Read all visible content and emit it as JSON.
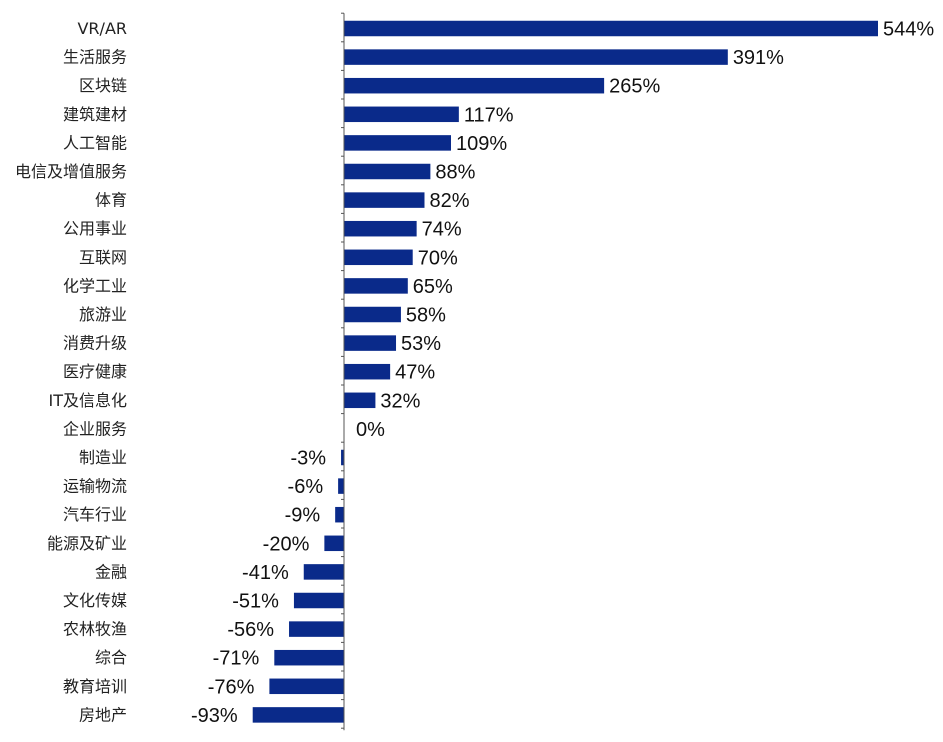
{
  "chart_data": {
    "type": "bar",
    "orientation": "horizontal",
    "categories": [
      "VR/AR",
      "生活服务",
      "区块链",
      "建筑建材",
      "人工智能",
      "电信及增值服务",
      "体育",
      "公用事业",
      "互联网",
      "化学工业",
      "旅游业",
      "消费升级",
      "医疗健康",
      "IT及信息化",
      "企业服务",
      "制造业",
      "运输物流",
      "汽车行业",
      "能源及矿业",
      "金融",
      "文化传媒",
      "农林牧渔",
      "综合",
      "教育培训",
      "房地产"
    ],
    "values": [
      544,
      391,
      265,
      117,
      109,
      88,
      82,
      74,
      70,
      65,
      58,
      53,
      47,
      32,
      0,
      -3,
      -6,
      -9,
      -20,
      -41,
      -51,
      -56,
      -71,
      -76,
      -93
    ],
    "labels": [
      "544%",
      "391%",
      "265%",
      "117%",
      "109%",
      "88%",
      "82%",
      "74%",
      "70%",
      "65%",
      "58%",
      "53%",
      "47%",
      "32%",
      "0%",
      "-3%",
      "-6%",
      "-9%",
      "-20%",
      "-41%",
      "-51%",
      "-56%",
      "-71%",
      "-76%",
      "-93%"
    ],
    "unit": "%",
    "bar_color": "#0a2a8a",
    "title": "",
    "xlabel": "",
    "ylabel": "",
    "grid": false,
    "legend": "none"
  }
}
